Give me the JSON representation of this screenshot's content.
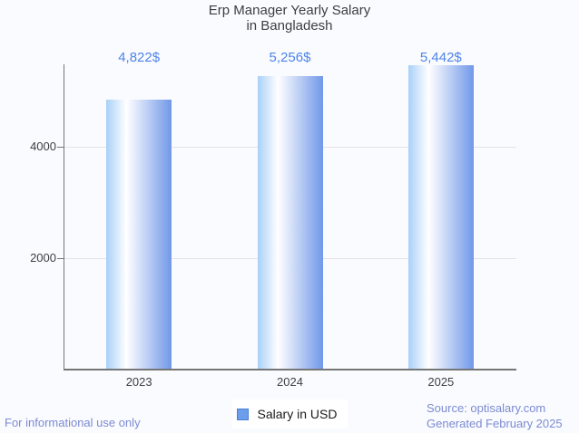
{
  "page": {
    "background": "#fafbfe"
  },
  "chart_data": {
    "type": "bar",
    "title": "Erp Manager Yearly Salary",
    "subtitle": "in Bangladesh",
    "categories": [
      "2023",
      "2024",
      "2025"
    ],
    "series": [
      {
        "name": "Salary in USD",
        "values": [
          4822,
          5256,
          5442
        ]
      }
    ],
    "value_labels": [
      "4,822$",
      "5,256$",
      "5,442$"
    ],
    "xlabel": "",
    "ylabel": "",
    "ylim": [
      0,
      5480
    ],
    "yticks": [
      2000,
      4000
    ],
    "grid": true,
    "legend_position": "bottom",
    "colors": {
      "bar_gradient_left": "#a9d0f8",
      "bar_gradient_mid": "#ffffff",
      "bar_gradient_right": "#7198e9",
      "value_label": "#4d84ea",
      "legend_marker_fill": "#6d9eeb",
      "legend_marker_border": "#4a7fd6",
      "axis_line": "#757575",
      "gridline": "#e3e3e3",
      "axis_text": "#3c4043",
      "title_text": "#3c4043",
      "footer_text": "#7c8bd3"
    }
  },
  "legend": {
    "label": "Salary in USD"
  },
  "footer": {
    "disclaimer": "For informational use only",
    "source": "Source: optisalary.com",
    "generated": "Generated February 2025"
  }
}
